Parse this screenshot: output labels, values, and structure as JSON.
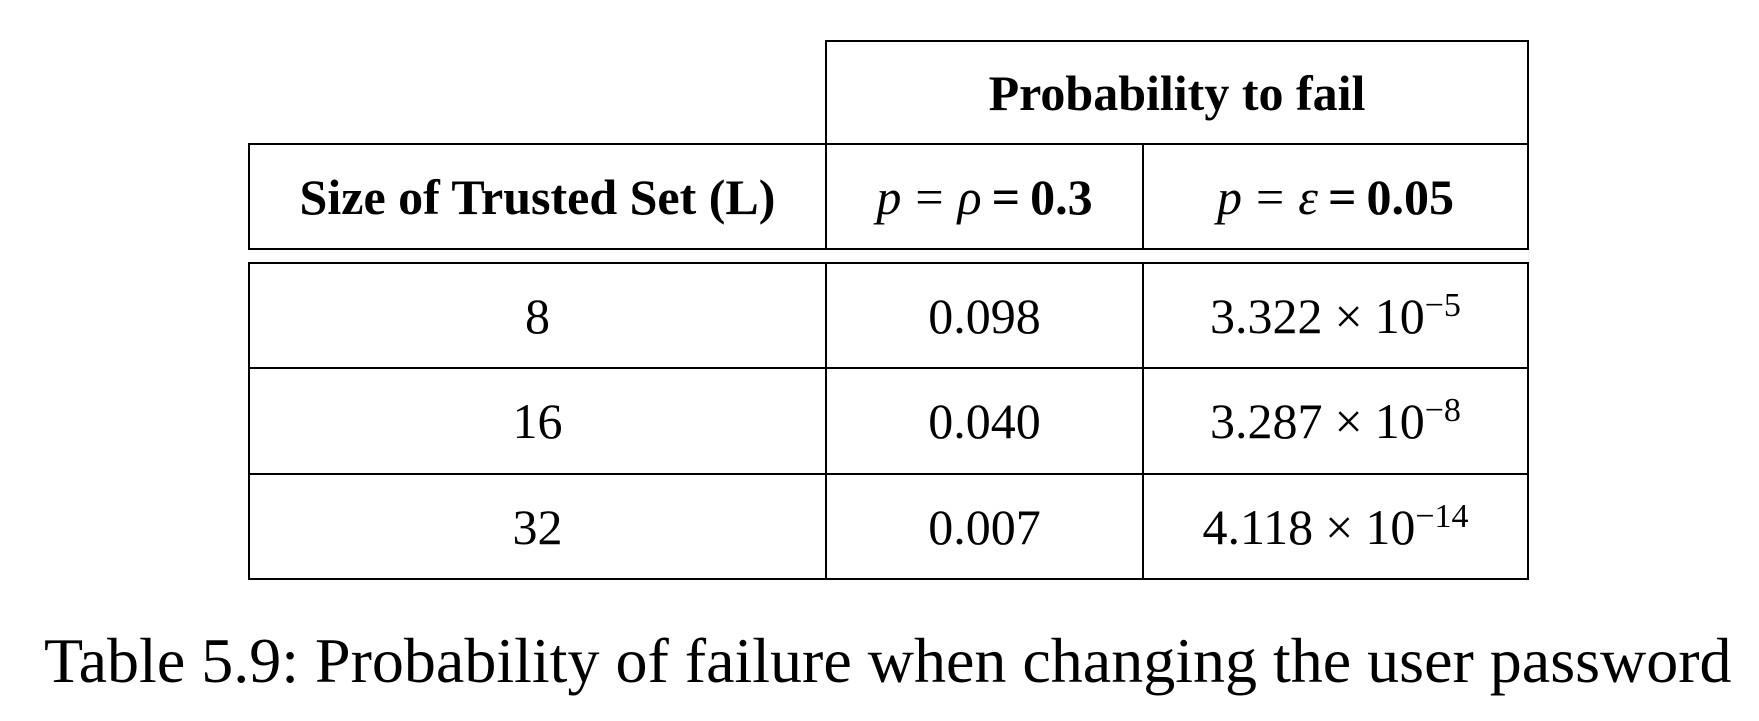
{
  "table": {
    "group_header": "Probability to fail",
    "col_size_label": "Size of Trusted Set (L)",
    "col_p1": {
      "var": "p",
      "eq": "=",
      "sym": "ρ",
      "eq2": "=",
      "value": "0.3"
    },
    "col_p2": {
      "var": "p",
      "eq": "=",
      "sym": "ε",
      "eq2": "=",
      "value": "0.05"
    },
    "rows": [
      {
        "size": "8",
        "p1": "0.098",
        "p2_mant": "3.322",
        "p2_times": "×",
        "p2_base": "10",
        "p2_exp": "−5"
      },
      {
        "size": "16",
        "p1": "0.040",
        "p2_mant": "3.287",
        "p2_times": "×",
        "p2_base": "10",
        "p2_exp": "−8"
      },
      {
        "size": "32",
        "p1": "0.007",
        "p2_mant": "4.118",
        "p2_times": "×",
        "p2_base": "10",
        "p2_exp": "−14"
      }
    ]
  },
  "caption": "Table 5.9: Probability of failure when changing the user password"
}
